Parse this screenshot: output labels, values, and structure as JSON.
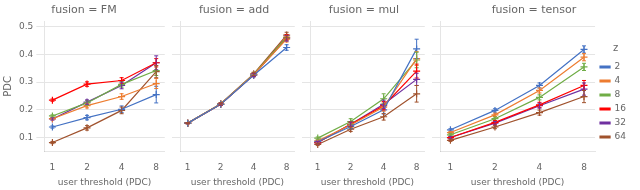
{
  "chart_data": [
    {
      "type": "line",
      "title": "fusion = FM",
      "xlabel": "user threshold (PDC)",
      "ylabel": "PDC",
      "x": [
        1,
        2,
        4,
        8
      ],
      "series": [
        {
          "name": "2",
          "color": "#4472C4",
          "values": [
            0.138,
            0.172,
            0.202,
            0.255
          ],
          "yerr": [
            0.004,
            0.008,
            0.012,
            0.03
          ]
        },
        {
          "name": "4",
          "color": "#ED7D31",
          "values": [
            0.168,
            0.215,
            0.248,
            0.295
          ],
          "yerr": [
            0.004,
            0.008,
            0.01,
            0.018
          ]
        },
        {
          "name": "8",
          "color": "#70AD47",
          "values": [
            0.178,
            0.225,
            0.292,
            0.342
          ],
          "yerr": [
            0.004,
            0.008,
            0.01,
            0.018
          ]
        },
        {
          "name": "16",
          "color": "#FF0000",
          "values": [
            0.235,
            0.293,
            0.306,
            0.37
          ],
          "yerr": [
            0.004,
            0.008,
            0.01,
            0.015
          ]
        },
        {
          "name": "32",
          "color": "#7030A0",
          "values": [
            0.167,
            0.228,
            0.288,
            0.37
          ],
          "yerr": [
            0.004,
            0.008,
            0.012,
            0.025
          ]
        },
        {
          "name": "64",
          "color": "#A0522D",
          "values": [
            0.082,
            0.135,
            0.198,
            0.338
          ],
          "yerr": [
            0.004,
            0.008,
            0.012,
            0.022
          ]
        }
      ],
      "xlim": [
        0.85,
        9.5
      ],
      "xticks": [
        1,
        2,
        4,
        8
      ],
      "ylim": [
        0.05,
        0.52
      ],
      "yticks": [
        0.1,
        0.2,
        0.3,
        0.4,
        0.5
      ],
      "log": "x",
      "grid": true,
      "marker": "+"
    },
    {
      "type": "line",
      "title": "fusion = add",
      "xlabel": "user threshold (PDC)",
      "x": [
        1,
        2,
        4,
        8
      ],
      "series": [
        {
          "name": "2",
          "color": "#4472C4",
          "values": [
            0.152,
            0.22,
            0.325,
            0.425
          ],
          "yerr": [
            0.002,
            0.004,
            0.006,
            0.01
          ]
        },
        {
          "name": "4",
          "color": "#ED7D31",
          "values": [
            0.152,
            0.221,
            0.327,
            0.455
          ],
          "yerr": [
            0.002,
            0.004,
            0.006,
            0.01
          ]
        },
        {
          "name": "8",
          "color": "#70AD47",
          "values": [
            0.152,
            0.221,
            0.328,
            0.462
          ],
          "yerr": [
            0.002,
            0.004,
            0.006,
            0.01
          ]
        },
        {
          "name": "16",
          "color": "#FF0000",
          "values": [
            0.152,
            0.22,
            0.326,
            0.462
          ],
          "yerr": [
            0.002,
            0.004,
            0.006,
            0.01
          ]
        },
        {
          "name": "32",
          "color": "#7030A0",
          "values": [
            0.152,
            0.22,
            0.326,
            0.458
          ],
          "yerr": [
            0.002,
            0.004,
            0.006,
            0.01
          ]
        },
        {
          "name": "64",
          "color": "#A0522D",
          "values": [
            0.152,
            0.222,
            0.33,
            0.47
          ],
          "yerr": [
            0.002,
            0.004,
            0.006,
            0.01
          ]
        }
      ],
      "xlim": [
        0.85,
        9.5
      ],
      "xticks": [
        1,
        2,
        4,
        8
      ],
      "ylim": [
        0.05,
        0.52
      ],
      "yticks": [
        0.1,
        0.2,
        0.3,
        0.4,
        0.5
      ],
      "log": "x",
      "grid": true,
      "marker": "+",
      "tick_labels": "x"
    },
    {
      "type": "line",
      "title": "fusion = mul",
      "xlabel": "user threshold (PDC)",
      "x": [
        1,
        2,
        4,
        8
      ],
      "series": [
        {
          "name": "2",
          "color": "#4472C4",
          "values": [
            0.085,
            0.14,
            0.2,
            0.42
          ],
          "yerr": [
            0.004,
            0.008,
            0.015,
            0.035
          ]
        },
        {
          "name": "4",
          "color": "#ED7D31",
          "values": [
            0.088,
            0.145,
            0.21,
            0.385
          ],
          "yerr": [
            0.004,
            0.008,
            0.015,
            0.025
          ]
        },
        {
          "name": "8",
          "color": "#70AD47",
          "values": [
            0.098,
            0.158,
            0.24,
            0.38
          ],
          "yerr": [
            0.004,
            0.01,
            0.018,
            0.028
          ]
        },
        {
          "name": "16",
          "color": "#FF0000",
          "values": [
            0.082,
            0.148,
            0.215,
            0.34
          ],
          "yerr": [
            0.004,
            0.008,
            0.015,
            0.025
          ]
        },
        {
          "name": "32",
          "color": "#7030A0",
          "values": [
            0.082,
            0.148,
            0.22,
            0.31
          ],
          "yerr": [
            0.004,
            0.008,
            0.015,
            0.022
          ]
        },
        {
          "name": "64",
          "color": "#A0522D",
          "values": [
            0.075,
            0.13,
            0.175,
            0.258
          ],
          "yerr": [
            0.004,
            0.008,
            0.012,
            0.03
          ]
        }
      ],
      "xlim": [
        0.85,
        9.5
      ],
      "xticks": [
        1,
        2,
        4,
        8
      ],
      "ylim": [
        0.05,
        0.52
      ],
      "yticks": [
        0.1,
        0.2,
        0.3,
        0.4,
        0.5
      ],
      "log": "x",
      "grid": true,
      "marker": "+",
      "tick_labels": "x"
    },
    {
      "type": "line",
      "title": "fusion = tensor",
      "xlabel": "user threshold (PDC)",
      "x": [
        1,
        2,
        4,
        8
      ],
      "series": [
        {
          "name": "2",
          "color": "#4472C4",
          "values": [
            0.128,
            0.198,
            0.288,
            0.418
          ],
          "yerr": [
            0.004,
            0.006,
            0.009,
            0.013
          ]
        },
        {
          "name": "4",
          "color": "#ED7D31",
          "values": [
            0.118,
            0.182,
            0.27,
            0.39
          ],
          "yerr": [
            0.004,
            0.006,
            0.009,
            0.013
          ]
        },
        {
          "name": "8",
          "color": "#70AD47",
          "values": [
            0.11,
            0.168,
            0.245,
            0.355
          ],
          "yerr": [
            0.004,
            0.006,
            0.009,
            0.013
          ]
        },
        {
          "name": "16",
          "color": "#FF0000",
          "values": [
            0.1,
            0.155,
            0.218,
            0.288
          ],
          "yerr": [
            0.004,
            0.006,
            0.009,
            0.018
          ]
        },
        {
          "name": "32",
          "color": "#7030A0",
          "values": [
            0.1,
            0.152,
            0.215,
            0.275
          ],
          "yerr": [
            0.004,
            0.006,
            0.009,
            0.022
          ]
        },
        {
          "name": "64",
          "color": "#A0522D",
          "values": [
            0.09,
            0.138,
            0.19,
            0.248
          ],
          "yerr": [
            0.004,
            0.006,
            0.009,
            0.022
          ]
        }
      ],
      "xlim": [
        0.85,
        9.5
      ],
      "xticks": [
        1,
        2,
        4,
        8
      ],
      "ylim": [
        0.05,
        0.52
      ],
      "yticks": [
        0.1,
        0.2,
        0.3,
        0.4,
        0.5
      ],
      "log": "x",
      "grid": true,
      "marker": "+",
      "tick_labels": "x",
      "legend": "right",
      "legend_title": "z"
    }
  ]
}
